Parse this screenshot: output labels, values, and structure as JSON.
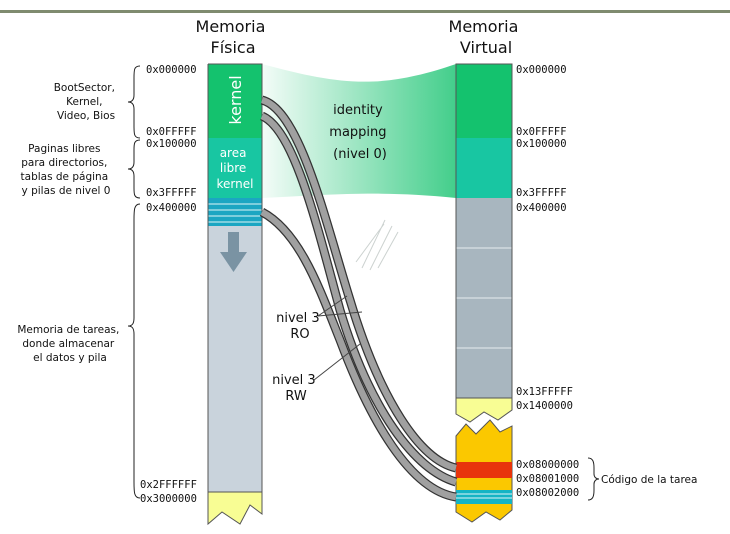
{
  "physical_title": [
    "Memoria",
    "Física"
  ],
  "virtual_title": [
    "Memoria",
    "Virtual"
  ],
  "physical_addresses": {
    "a0": "0x000000",
    "a1": "0x0FFFFF",
    "a2": "0x100000",
    "a3": "0x3FFFFF",
    "a4": "0x400000",
    "a5": "0x2FFFFFF",
    "a6": "0x3000000"
  },
  "virtual_addresses": {
    "a0": "0x000000",
    "a1": "0x0FFFFF",
    "a2": "0x100000",
    "a3": "0x3FFFFF",
    "a4": "0x400000",
    "a5": "0x13FFFFF",
    "a6": "0x1400000",
    "a7": "0x08000000",
    "a8": "0x08001000",
    "a9": "0x08002000"
  },
  "left_labels": {
    "boot": [
      "BootSector,",
      "Kernel,",
      "Video, Bios"
    ],
    "pages": [
      "Paginas libres",
      "para directorios,",
      "tablas de página",
      "y pilas de nivel 0"
    ],
    "tasks": [
      "Memoria de tareas,",
      "donde almacenar",
      "el datos y pila"
    ]
  },
  "blocks": {
    "kernel": "kernel",
    "free_kernel": [
      "area",
      "libre",
      "kernel"
    ]
  },
  "mapping_labels": {
    "identity": [
      "identity",
      "mapping",
      "(nivel 0)"
    ],
    "ro": [
      "nivel 3",
      "RO"
    ],
    "rw": [
      "nivel 3",
      "RW"
    ]
  },
  "task_code_label": "Código de la tarea",
  "colors": {
    "kernel": "#14c26e",
    "free_kernel": "#18c6a2",
    "tables": "#1ba6c2",
    "tasks": "#c9d3dc",
    "virtual_tasks": "#a8b6bf",
    "end": "#f8fd94",
    "code_ro": "#e8340c",
    "code_rw": "#14b4c4",
    "virtual_code_area": "#fbc800",
    "header_line": "#7f8b6f"
  }
}
